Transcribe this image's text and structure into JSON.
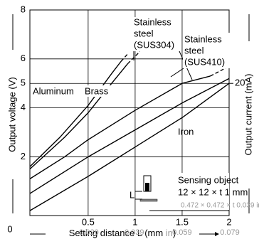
{
  "chart_data": {
    "type": "line",
    "y_label": "Output voltage (V)",
    "y2_label": "Output current (mA)",
    "x_label": [
      "Setting distance L (mm ",
      "in",
      ")"
    ],
    "origin_label": "0",
    "xlim": [
      -0.12,
      2
    ],
    "xticks": [
      0.5,
      1,
      1.5,
      2
    ],
    "x2lim": [
      -0.0047,
      0.0787
    ],
    "x2ticks": [
      {
        "value": 0.02,
        "label": "0.020"
      },
      {
        "value": 0.039,
        "label": "0.039"
      },
      {
        "value": 0.059,
        "label": "0.059"
      },
      {
        "value": 0.079,
        "label": "0.079"
      }
    ],
    "ylim": [
      -0.4,
      8
    ],
    "yticks": [
      2,
      4,
      5,
      6,
      8
    ],
    "y2lim": [
      -1.6,
      32
    ],
    "y2ticks": [
      20
    ],
    "grid": true,
    "color": "#000000",
    "series": [
      {
        "name": "Aluminum",
        "x": [
          -0.12,
          0.2,
          0.5,
          0.75,
          0.85,
          0.92
        ],
        "values": [
          1.6,
          2.8,
          4.1,
          5.4,
          5.9,
          6.2
        ],
        "dashed": [
          false,
          false,
          false,
          false,
          false,
          true
        ]
      },
      {
        "name": "Brass",
        "x": [
          -0.12,
          0.25,
          0.5,
          0.75,
          0.92,
          1.05
        ],
        "values": [
          1.5,
          2.8,
          3.8,
          5.0,
          5.8,
          6.3
        ],
        "dashed": [
          false,
          false,
          false,
          false,
          false,
          true
        ]
      },
      {
        "name": "Stainless steel (SUS304)",
        "x": [
          -0.12,
          0.25,
          0.5,
          1.0,
          1.5,
          1.8,
          2.0
        ],
        "values": [
          1.1,
          2.0,
          2.7,
          3.9,
          5.0,
          5.3,
          5.7
        ],
        "dashed": [
          false,
          false,
          false,
          false,
          false,
          false,
          true
        ]
      },
      {
        "name": "Stainless steel (SUS410)",
        "x": [
          -0.12,
          0.5,
          1.0,
          1.5,
          2.0
        ],
        "values": [
          0.5,
          2.0,
          3.1,
          4.2,
          5.2
        ],
        "dashed": [
          false,
          false,
          false,
          false,
          false
        ]
      },
      {
        "name": "Iron",
        "x": [
          -0.12,
          0.5,
          1.0,
          1.5,
          2.0
        ],
        "values": [
          -0.2,
          1.2,
          2.4,
          3.6,
          5.0
        ],
        "dashed": [
          false,
          false,
          false,
          false,
          false
        ]
      }
    ],
    "annotations": {
      "aluminum": "Aluminum",
      "brass": "Brass",
      "sus304": [
        "Stainless",
        "steel",
        "(SUS304)"
      ],
      "sus410": [
        "Stainless",
        "steel",
        "(SUS410)"
      ],
      "iron": "Iron",
      "sensing_object": "Sensing object",
      "size_mm": "12 × 12 × t 1 mm",
      "size_in": "0.472 × 0.472 × t 0.039 in",
      "l_mark": "L"
    }
  }
}
